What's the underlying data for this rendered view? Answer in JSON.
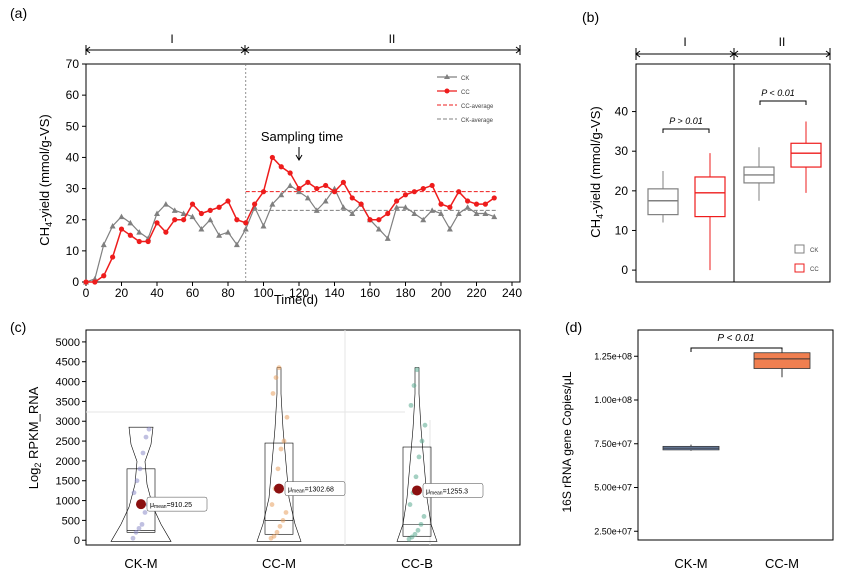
{
  "colors": {
    "ck": "#808080",
    "cc": "#ee1c1c",
    "ckm": "#8c8cc8",
    "ccm": "#e8a060",
    "ccb": "#5aaa90",
    "box_ckm": "#7c98c6",
    "box_ccm": "#f07f50",
    "dark_red": "#8b1010"
  },
  "chart_data": [
    {
      "id": "a",
      "type": "line",
      "panel_label": "(a)",
      "period_labels": [
        "I",
        "II"
      ],
      "xlabel": "Time(d)",
      "ylabel_main": "CH",
      "ylabel_sub": "4",
      "ylabel_rest": "-yield (mmol/g-VS)",
      "xlim": [
        0,
        240
      ],
      "ylim": [
        0,
        70
      ],
      "xticks": [
        0,
        20,
        40,
        60,
        80,
        100,
        120,
        140,
        160,
        180,
        200,
        220,
        240
      ],
      "yticks": [
        0,
        10,
        20,
        30,
        40,
        50,
        60,
        70
      ],
      "divider_x": 90,
      "annotation": "Sampling time",
      "annotation_x": 120,
      "series": [
        {
          "name": "CK",
          "x": [
            0,
            5,
            10,
            15,
            20,
            25,
            30,
            35,
            40,
            45,
            50,
            55,
            60,
            65,
            70,
            75,
            80,
            85,
            90,
            95,
            100,
            105,
            110,
            115,
            120,
            125,
            130,
            135,
            140,
            145,
            150,
            155,
            160,
            165,
            170,
            175,
            180,
            185,
            190,
            195,
            200,
            205,
            210,
            215,
            220,
            225,
            230
          ],
          "y": [
            0,
            1,
            12,
            18,
            21,
            19,
            16,
            14,
            22,
            25,
            23,
            22,
            21,
            17,
            20,
            15,
            16,
            12,
            17,
            24,
            18,
            25,
            28,
            31,
            29,
            27,
            23,
            26,
            30,
            24,
            22,
            25,
            20,
            17,
            14,
            24,
            24,
            22,
            20,
            23,
            22,
            17,
            22,
            24,
            22,
            22,
            21
          ]
        },
        {
          "name": "CC",
          "x": [
            0,
            5,
            10,
            15,
            20,
            25,
            30,
            35,
            40,
            45,
            50,
            55,
            60,
            65,
            70,
            75,
            80,
            85,
            90,
            95,
            100,
            105,
            110,
            115,
            120,
            125,
            130,
            135,
            140,
            145,
            150,
            155,
            160,
            165,
            170,
            175,
            180,
            185,
            190,
            195,
            200,
            205,
            210,
            215,
            220,
            225,
            230
          ],
          "y": [
            0,
            0,
            2,
            8,
            17,
            15,
            13,
            13,
            19,
            16,
            20,
            20,
            25,
            22,
            23,
            24,
            26,
            20,
            19,
            25,
            29,
            40,
            37,
            35,
            30,
            32,
            30,
            31,
            29,
            32,
            27,
            25,
            20,
            20,
            22,
            26,
            28,
            29,
            30,
            31,
            25,
            24,
            29,
            26,
            25,
            25,
            27
          ]
        }
      ],
      "hlines": [
        {
          "name": "CC-average",
          "y": 29
        },
        {
          "name": "CK-average",
          "y": 23
        }
      ]
    },
    {
      "id": "b",
      "type": "box",
      "panel_label": "(b)",
      "period_labels": [
        "I",
        "II"
      ],
      "ylabel_main": "CH",
      "ylabel_sub": "4",
      "ylabel_rest": "-yield (mmol/g-VS)",
      "ylim": [
        -3,
        52
      ],
      "yticks": [
        0,
        10,
        20,
        30,
        40
      ],
      "legend": [
        "CK",
        "CC"
      ],
      "annotations": [
        "P > 0.01",
        "P < 0.01"
      ],
      "boxes": [
        {
          "group": "I",
          "series": "CK",
          "min": 12,
          "q1": 14,
          "median": 17.5,
          "q3": 20.5,
          "max": 25
        },
        {
          "group": "I",
          "series": "CC",
          "min": 0,
          "q1": 13.5,
          "median": 19.5,
          "q3": 23.5,
          "max": 29.5
        },
        {
          "group": "II",
          "series": "CK",
          "min": 17.5,
          "q1": 22,
          "median": 24,
          "q3": 26,
          "max": 31
        },
        {
          "group": "II",
          "series": "CC",
          "min": 19.5,
          "q1": 26,
          "median": 29.5,
          "q3": 32,
          "max": 37.5
        }
      ]
    },
    {
      "id": "c",
      "type": "violin",
      "panel_label": "(c)",
      "ylabel_main": "Log",
      "ylabel_sub": "2",
      "ylabel_rest": " RPKM_RNA",
      "ylim": [
        -120,
        5300
      ],
      "yticks": [
        0,
        500,
        1000,
        1500,
        2000,
        2500,
        3000,
        3500,
        4000,
        4500,
        5000
      ],
      "categories": [
        "CK-M",
        "CC-M",
        "CC-B"
      ],
      "mean_label_prefix": "μ",
      "mean_label_sub": "mean",
      "means": [
        910.25,
        1302.68,
        1255.3
      ],
      "mean_labels": [
        "=910.25",
        "=1302.68",
        "=1255.3"
      ],
      "boxes": [
        {
          "q1": 200,
          "median": 250,
          "q3": 1800,
          "max": 2850
        },
        {
          "q1": 150,
          "median": 500,
          "q3": 2450,
          "max": 4350
        },
        {
          "q1": 100,
          "median": 400,
          "q3": 2350,
          "max": 4350
        }
      ]
    },
    {
      "id": "d",
      "type": "box",
      "panel_label": "(d)",
      "ylabel": "16S rRNA gene  Copies/μL",
      "ylim": [
        20000000,
        140000000
      ],
      "yticks": [
        25000000,
        50000000,
        75000000,
        100000000,
        125000000
      ],
      "ytick_labels": [
        "2.50e+07",
        "5.00e+07",
        "7.50e+07",
        "1.00e+08",
        "1.25e+08"
      ],
      "categories": [
        "CK-M",
        "CC-M"
      ],
      "annotation": "P < 0.01",
      "boxes": [
        {
          "min": 71000000,
          "q1": 71500000,
          "median": 72500000,
          "q3": 73500000,
          "max": 74500000
        },
        {
          "min": 113000000,
          "q1": 118000000,
          "median": 123500000,
          "q3": 127000000,
          "max": 129000000
        }
      ]
    }
  ]
}
